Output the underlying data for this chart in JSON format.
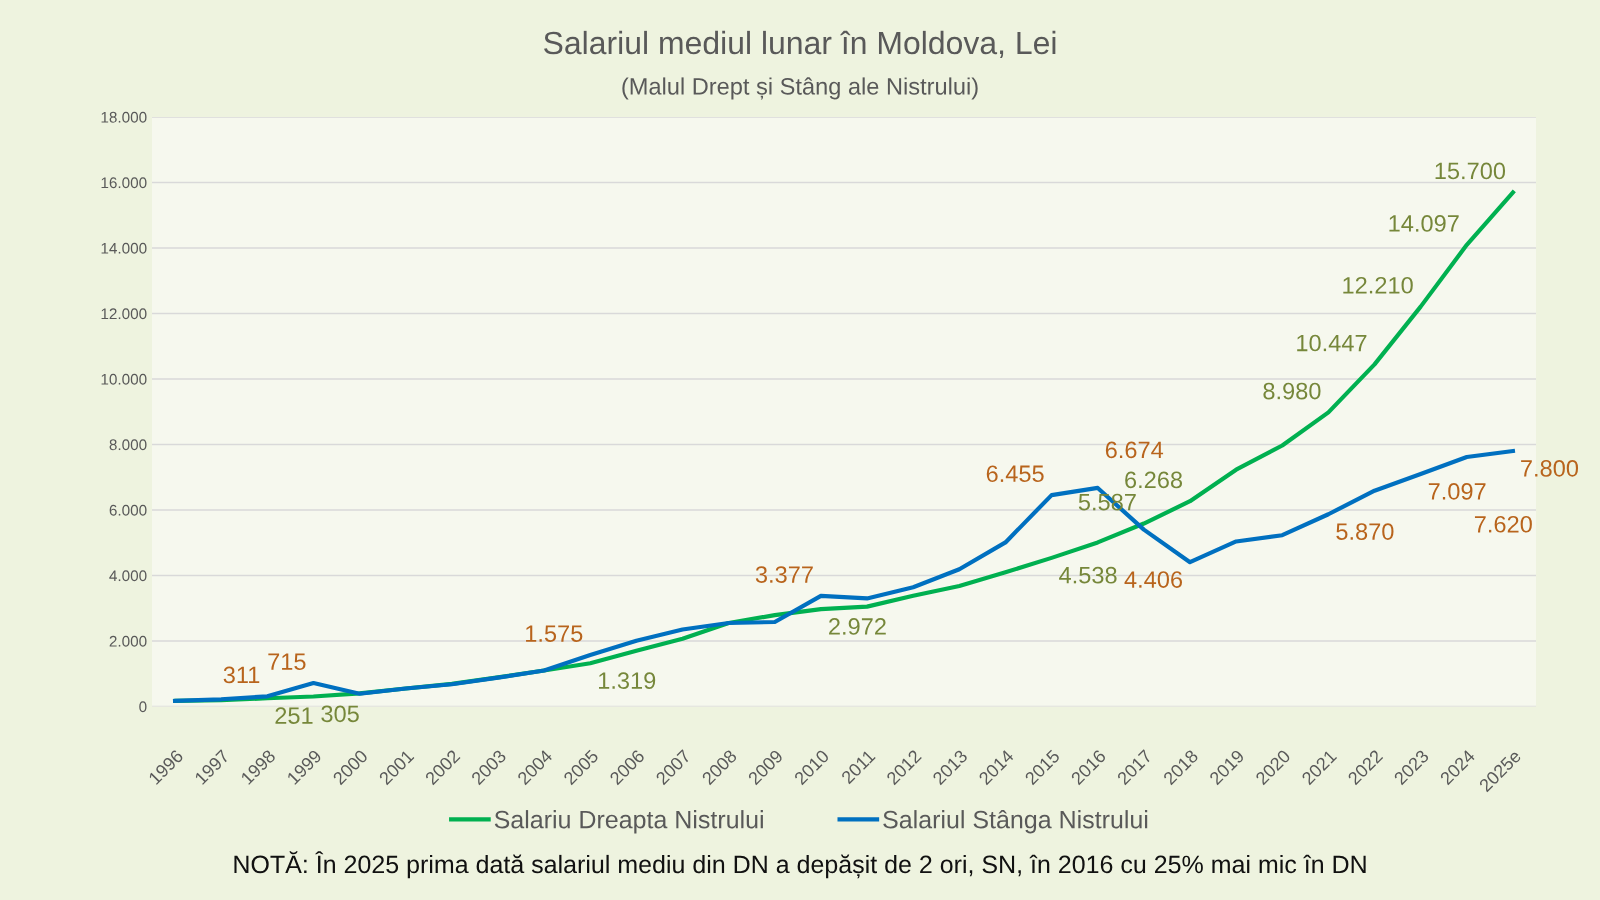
{
  "chart_data": {
    "type": "line",
    "title": "Salariul mediul lunar în Moldova, Lei",
    "subtitle": "(Malul Drept și Stâng ale Nistrului)",
    "categories": [
      "1996",
      "1997",
      "1998",
      "1999",
      "2000",
      "2001",
      "2002",
      "2003",
      "2004",
      "2005",
      "2006",
      "2007",
      "2008",
      "2009",
      "2010",
      "2011",
      "2012",
      "2013",
      "2014",
      "2015",
      "2016",
      "2017",
      "2018",
      "2019",
      "2020",
      "2021",
      "2022",
      "2023",
      "2024",
      "2025e"
    ],
    "series": [
      {
        "name": "Salariu Dreapta Nistrului",
        "color": "#00b050",
        "values": [
          170,
          190,
          251,
          305,
          400,
          550,
          690,
          890,
          1100,
          1319,
          1700,
          2070,
          2550,
          2790,
          2972,
          3050,
          3380,
          3680,
          4100,
          4538,
          5010,
          5587,
          6268,
          7230,
          7970,
          8980,
          10447,
          12210,
          14097,
          15700
        ],
        "value_labels": [
          null,
          null,
          "251",
          "305",
          null,
          null,
          null,
          null,
          null,
          "1.319",
          null,
          null,
          null,
          null,
          "2.972",
          null,
          null,
          null,
          null,
          "4.538",
          null,
          "5.587",
          "6.268",
          null,
          null,
          "8.980",
          "10.447",
          "12.210",
          "14.097",
          "15.700"
        ]
      },
      {
        "name": "Salariul Stânga Nistrului",
        "color": "#0070c0",
        "values": [
          170,
          220,
          311,
          715,
          390,
          550,
          680,
          880,
          1100,
          1575,
          2010,
          2350,
          2550,
          2580,
          3377,
          3300,
          3640,
          4190,
          5010,
          6455,
          6674,
          5400,
          4406,
          5040,
          5230,
          5870,
          6590,
          7097,
          7620,
          7800
        ],
        "value_labels": [
          null,
          null,
          "311",
          "715",
          null,
          null,
          null,
          null,
          null,
          "1.575",
          null,
          null,
          null,
          null,
          "3.377",
          null,
          null,
          null,
          null,
          "6.455",
          "6.674",
          null,
          "4.406",
          null,
          null,
          "5.870",
          null,
          "7.097",
          "7.620",
          "7.800"
        ]
      }
    ],
    "ylim": [
      0,
      18000
    ],
    "yticks": [
      0,
      {
        "value": 2000,
        "label": "2.000"
      },
      {
        "value": 4000,
        "label": "4.000"
      },
      {
        "value": 6000,
        "label": "6.000"
      },
      {
        "value": 8000,
        "label": "8.000"
      },
      {
        "value": 10000,
        "label": "10.000"
      },
      {
        "value": 12000,
        "label": "12.000"
      },
      {
        "value": 14000,
        "label": "14.000"
      },
      {
        "value": 16000,
        "label": "16.000"
      },
      {
        "value": 18000,
        "label": "18.000"
      }
    ],
    "grid": "y",
    "legend": "bottom",
    "marker": "none",
    "line_style": "solid",
    "annotations": [
      "NOTĂ: În 2025 prima dată salariul mediu din DN a depășit de 2 ori, SN, în 2016 cu 25% mai mic în DN"
    ]
  }
}
